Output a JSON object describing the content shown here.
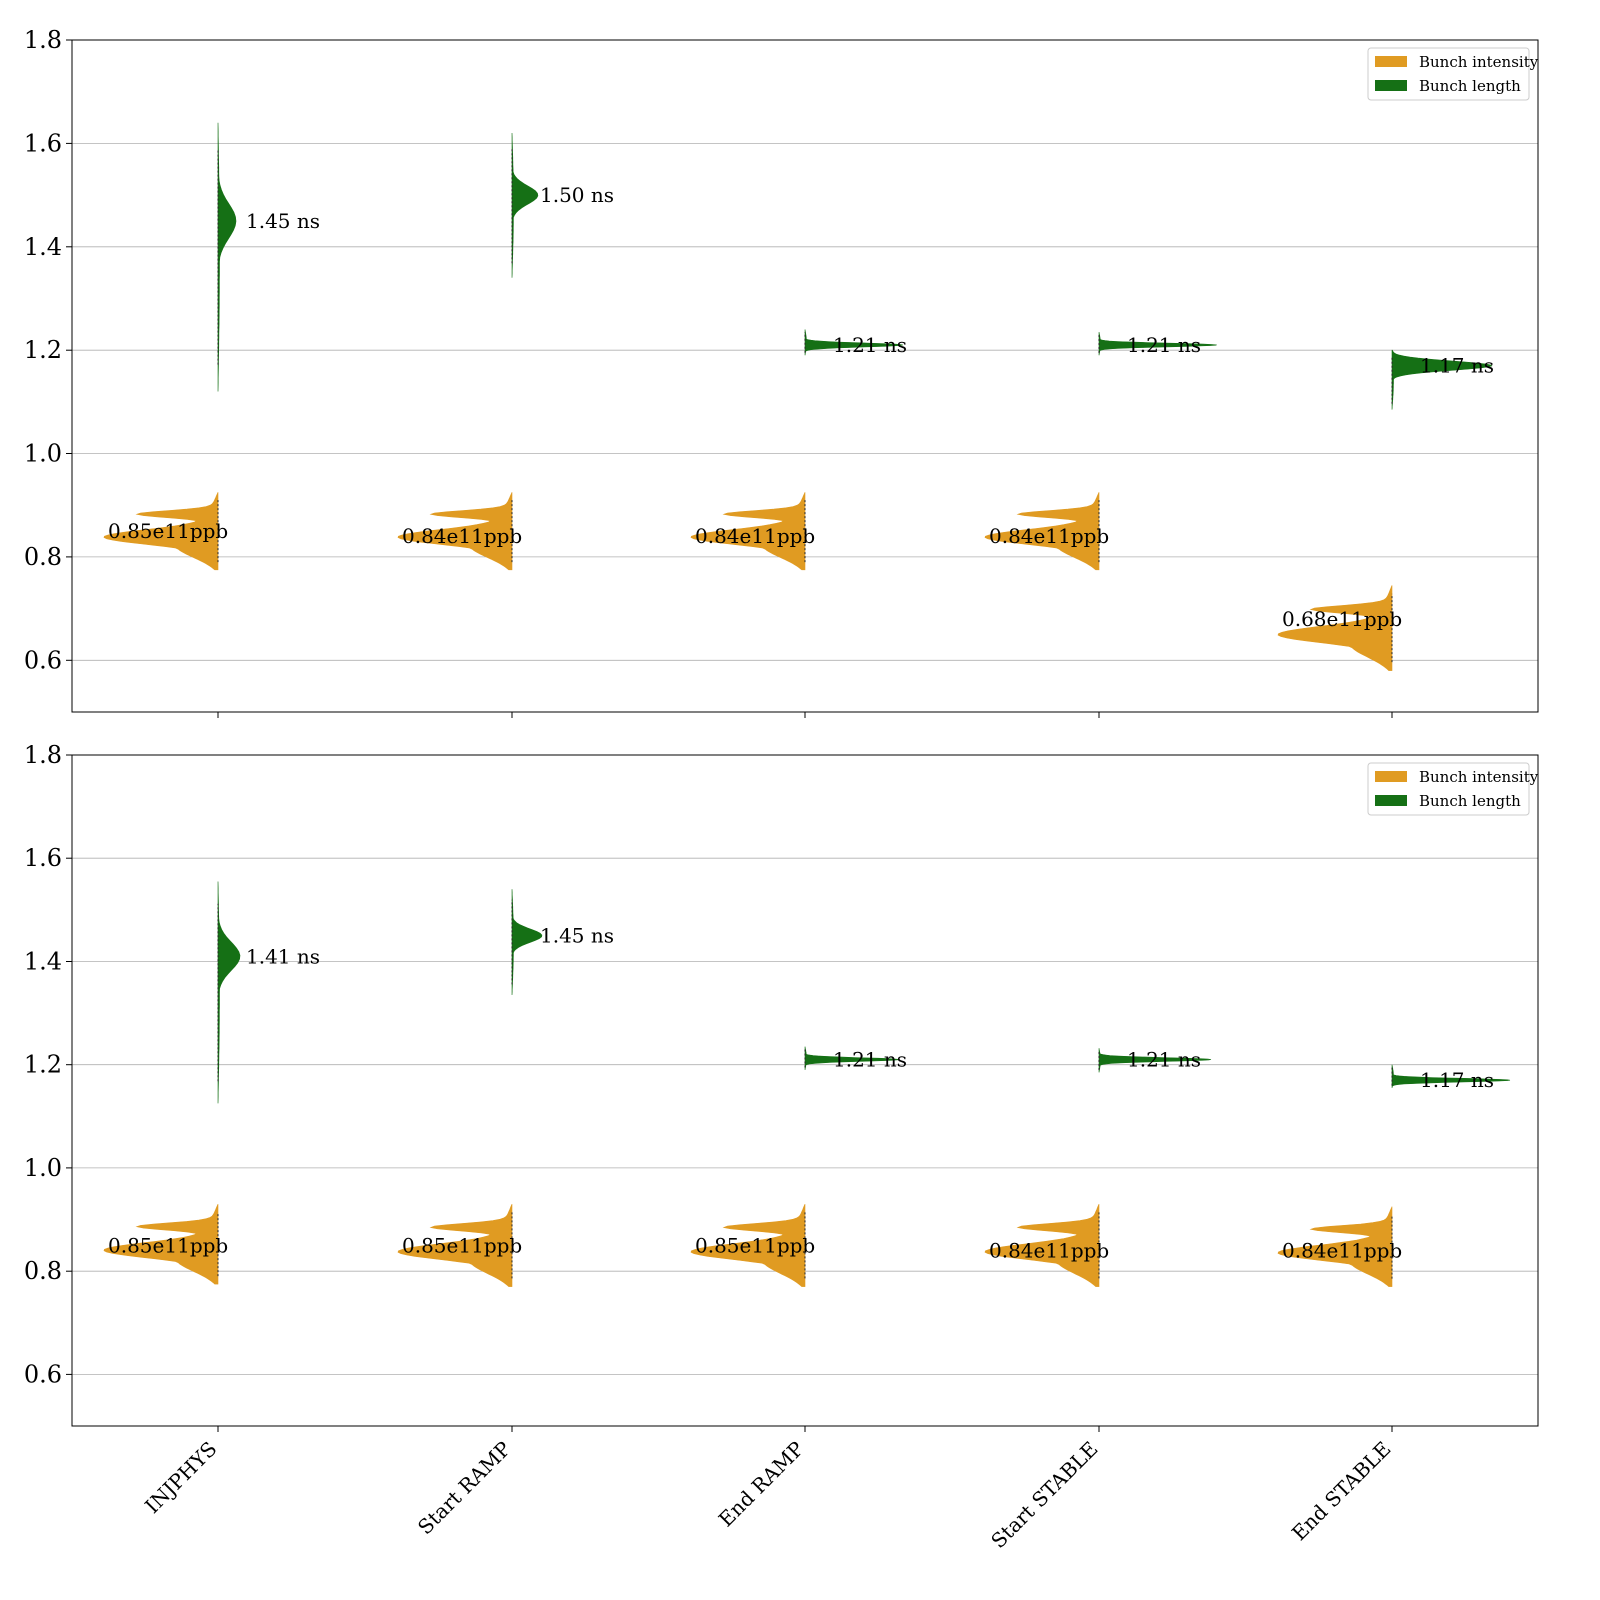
{
  "chart_data": [
    {
      "type": "violin",
      "ylim": [
        0.5,
        1.8
      ],
      "yticks": [
        "0.6",
        "0.8",
        "1.0",
        "1.2",
        "1.4",
        "1.6",
        "1.8"
      ],
      "grid": true,
      "legend_position": "top-right",
      "legend": [
        "Bunch intensity",
        "Bunch length"
      ],
      "categories": [
        "INJPHYS",
        "Start RAMP",
        "End RAMP",
        "Start STABLE",
        "End STABLE"
      ],
      "series": [
        {
          "name": "Bunch intensity",
          "color": "#E09B22",
          "side": "left",
          "median": [
            0.85,
            0.84,
            0.84,
            0.84,
            0.68
          ],
          "range": [
            [
              0.775,
              0.925
            ],
            [
              0.775,
              0.925
            ],
            [
              0.775,
              0.925
            ],
            [
              0.775,
              0.925
            ],
            [
              0.58,
              0.745
            ]
          ],
          "labels": [
            "0.85e11ppb",
            "0.84e11ppb",
            "0.84e11ppb",
            "0.84e11ppb",
            "0.68e11ppb"
          ]
        },
        {
          "name": "Bunch length",
          "color": "#157015",
          "side": "right",
          "median": [
            1.45,
            1.5,
            1.21,
            1.21,
            1.17
          ],
          "range": [
            [
              1.12,
              1.64
            ],
            [
              1.34,
              1.62
            ],
            [
              1.19,
              1.24
            ],
            [
              1.19,
              1.235
            ],
            [
              1.085,
              1.2
            ]
          ],
          "labels": [
            "1.45 ns",
            "1.50 ns",
            "1.21 ns",
            "1.21 ns",
            "1.17 ns"
          ]
        }
      ]
    },
    {
      "type": "violin",
      "ylim": [
        0.5,
        1.8
      ],
      "yticks": [
        "0.6",
        "0.8",
        "1.0",
        "1.2",
        "1.4",
        "1.6",
        "1.8"
      ],
      "grid": true,
      "legend_position": "top-right",
      "legend": [
        "Bunch intensity",
        "Bunch length"
      ],
      "categories": [
        "INJPHYS",
        "Start RAMP",
        "End RAMP",
        "Start STABLE",
        "End STABLE"
      ],
      "series": [
        {
          "name": "Bunch intensity",
          "color": "#E09B22",
          "side": "left",
          "median": [
            0.85,
            0.85,
            0.85,
            0.84,
            0.84
          ],
          "range": [
            [
              0.775,
              0.93
            ],
            [
              0.77,
              0.93
            ],
            [
              0.77,
              0.93
            ],
            [
              0.77,
              0.93
            ],
            [
              0.77,
              0.925
            ]
          ],
          "labels": [
            "0.85e11ppb",
            "0.85e11ppb",
            "0.85e11ppb",
            "0.84e11ppb",
            "0.84e11ppb"
          ]
        },
        {
          "name": "Bunch length",
          "color": "#157015",
          "side": "right",
          "median": [
            1.41,
            1.45,
            1.21,
            1.21,
            1.17
          ],
          "range": [
            [
              1.125,
              1.555
            ],
            [
              1.335,
              1.54
            ],
            [
              1.19,
              1.235
            ],
            [
              1.185,
              1.232
            ],
            [
              1.155,
              1.2
            ]
          ],
          "labels": [
            "1.41 ns",
            "1.45 ns",
            "1.21 ns",
            "1.21 ns",
            "1.17 ns"
          ]
        }
      ]
    }
  ]
}
